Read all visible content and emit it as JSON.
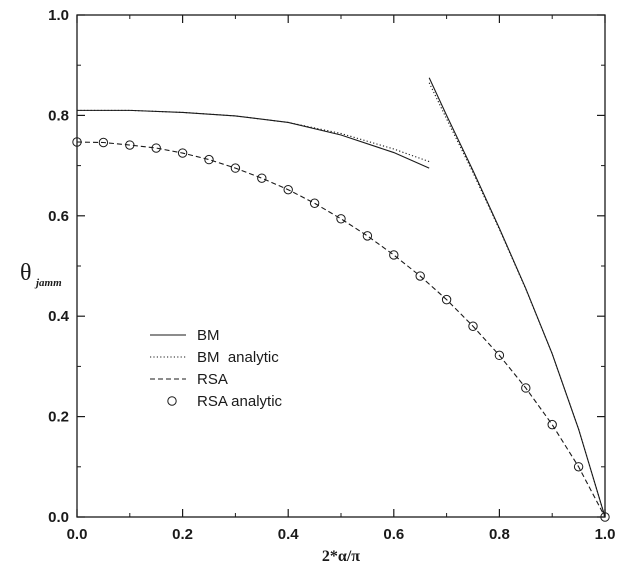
{
  "chart_data": {
    "type": "line",
    "xlabel": "2*α/π",
    "ylabel": "θ",
    "ylabel_sub": "jamm",
    "xlim": [
      0.0,
      1.0
    ],
    "ylim": [
      0.0,
      1.0
    ],
    "xticks": [
      "0.0",
      "0.2",
      "0.4",
      "0.6",
      "0.8",
      "1.0"
    ],
    "yticks": [
      "0.0",
      "0.2",
      "0.4",
      "0.6",
      "0.8",
      "1.0"
    ],
    "grid": false,
    "legend_position": "center-left",
    "series": [
      {
        "name": "BM",
        "style": "solid",
        "segments": [
          [
            [
              0.0,
              0.81
            ],
            [
              0.1,
              0.81
            ],
            [
              0.2,
              0.806
            ],
            [
              0.3,
              0.799
            ],
            [
              0.4,
              0.786
            ],
            [
              0.5,
              0.761
            ],
            [
              0.6,
              0.726
            ],
            [
              0.667,
              0.695
            ]
          ],
          [
            [
              0.667,
              0.875
            ],
            [
              0.7,
              0.8
            ],
            [
              0.75,
              0.69
            ],
            [
              0.8,
              0.575
            ],
            [
              0.85,
              0.455
            ],
            [
              0.9,
              0.325
            ],
            [
              0.95,
              0.175
            ],
            [
              1.0,
              0.0
            ]
          ]
        ]
      },
      {
        "name": "BM  analytic",
        "style": "dotted",
        "segments": [
          [
            [
              0.0,
              0.81
            ],
            [
              0.1,
              0.81
            ],
            [
              0.2,
              0.806
            ],
            [
              0.3,
              0.799
            ],
            [
              0.4,
              0.786
            ],
            [
              0.5,
              0.764
            ],
            [
              0.6,
              0.733
            ],
            [
              0.667,
              0.708
            ]
          ],
          [
            [
              0.667,
              0.865
            ],
            [
              0.7,
              0.793
            ],
            [
              0.75,
              0.686
            ],
            [
              0.8,
              0.573
            ],
            [
              0.85,
              0.454
            ],
            [
              0.9,
              0.325
            ],
            [
              0.95,
              0.175
            ],
            [
              1.0,
              0.0
            ]
          ]
        ]
      },
      {
        "name": "RSA",
        "style": "dashed",
        "segments": [
          [
            [
              0.0,
              0.747
            ],
            [
              0.05,
              0.746
            ],
            [
              0.1,
              0.741
            ],
            [
              0.15,
              0.735
            ],
            [
              0.2,
              0.725
            ],
            [
              0.25,
              0.712
            ],
            [
              0.3,
              0.695
            ],
            [
              0.35,
              0.675
            ],
            [
              0.4,
              0.652
            ],
            [
              0.45,
              0.625
            ],
            [
              0.5,
              0.594
            ],
            [
              0.55,
              0.56
            ],
            [
              0.6,
              0.522
            ],
            [
              0.65,
              0.48
            ],
            [
              0.7,
              0.433
            ],
            [
              0.75,
              0.38
            ],
            [
              0.8,
              0.322
            ],
            [
              0.85,
              0.257
            ],
            [
              0.9,
              0.184
            ],
            [
              0.95,
              0.1
            ],
            [
              1.0,
              0.0
            ]
          ]
        ]
      },
      {
        "name": "RSA analytic",
        "style": "markers",
        "marker": "open-circle",
        "points": [
          [
            0.0,
            0.747
          ],
          [
            0.05,
            0.746
          ],
          [
            0.1,
            0.741
          ],
          [
            0.15,
            0.735
          ],
          [
            0.2,
            0.725
          ],
          [
            0.25,
            0.712
          ],
          [
            0.3,
            0.695
          ],
          [
            0.35,
            0.675
          ],
          [
            0.4,
            0.652
          ],
          [
            0.45,
            0.625
          ],
          [
            0.5,
            0.594
          ],
          [
            0.55,
            0.56
          ],
          [
            0.6,
            0.522
          ],
          [
            0.65,
            0.48
          ],
          [
            0.7,
            0.433
          ],
          [
            0.75,
            0.38
          ],
          [
            0.8,
            0.322
          ],
          [
            0.85,
            0.257
          ],
          [
            0.9,
            0.184
          ],
          [
            0.95,
            0.1
          ],
          [
            1.0,
            0.0
          ]
        ]
      }
    ],
    "legend": [
      "BM",
      "BM  analytic",
      "RSA",
      "RSA analytic"
    ]
  },
  "colors": {
    "ink": "#1a1a1a",
    "background": "#ffffff"
  }
}
